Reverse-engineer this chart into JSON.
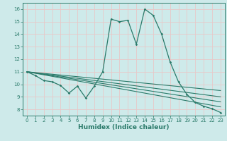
{
  "xlabel": "Humidex (Indice chaleur)",
  "ylabel": "",
  "xlim": [
    -0.5,
    23.5
  ],
  "ylim": [
    7.5,
    16.5
  ],
  "yticks": [
    8,
    9,
    10,
    11,
    12,
    13,
    14,
    15,
    16
  ],
  "xticks": [
    0,
    1,
    2,
    3,
    4,
    5,
    6,
    7,
    8,
    9,
    10,
    11,
    12,
    13,
    14,
    15,
    16,
    17,
    18,
    19,
    20,
    21,
    22,
    23
  ],
  "bg_color": "#ceeaea",
  "grid_color": "#e8c8c8",
  "line_color": "#2a7a6a",
  "main_line": [
    [
      0,
      11.0
    ],
    [
      1,
      10.7
    ],
    [
      2,
      10.3
    ],
    [
      3,
      10.2
    ],
    [
      4,
      9.9
    ],
    [
      5,
      9.3
    ],
    [
      6,
      9.85
    ],
    [
      7,
      8.9
    ],
    [
      8,
      9.85
    ],
    [
      9,
      11.0
    ],
    [
      10,
      15.2
    ],
    [
      11,
      15.0
    ],
    [
      12,
      15.1
    ],
    [
      13,
      13.2
    ],
    [
      14,
      16.0
    ],
    [
      15,
      15.5
    ],
    [
      16,
      14.0
    ],
    [
      17,
      11.8
    ],
    [
      18,
      10.2
    ],
    [
      19,
      9.2
    ],
    [
      20,
      8.55
    ],
    [
      21,
      8.25
    ],
    [
      22,
      8.05
    ],
    [
      23,
      7.75
    ]
  ],
  "diagonal_lines": [
    [
      [
        0,
        11.0
      ],
      [
        23,
        9.5
      ]
    ],
    [
      [
        0,
        11.0
      ],
      [
        23,
        9.0
      ]
    ],
    [
      [
        0,
        11.0
      ],
      [
        23,
        8.6
      ]
    ],
    [
      [
        0,
        11.0
      ],
      [
        23,
        8.2
      ]
    ]
  ]
}
